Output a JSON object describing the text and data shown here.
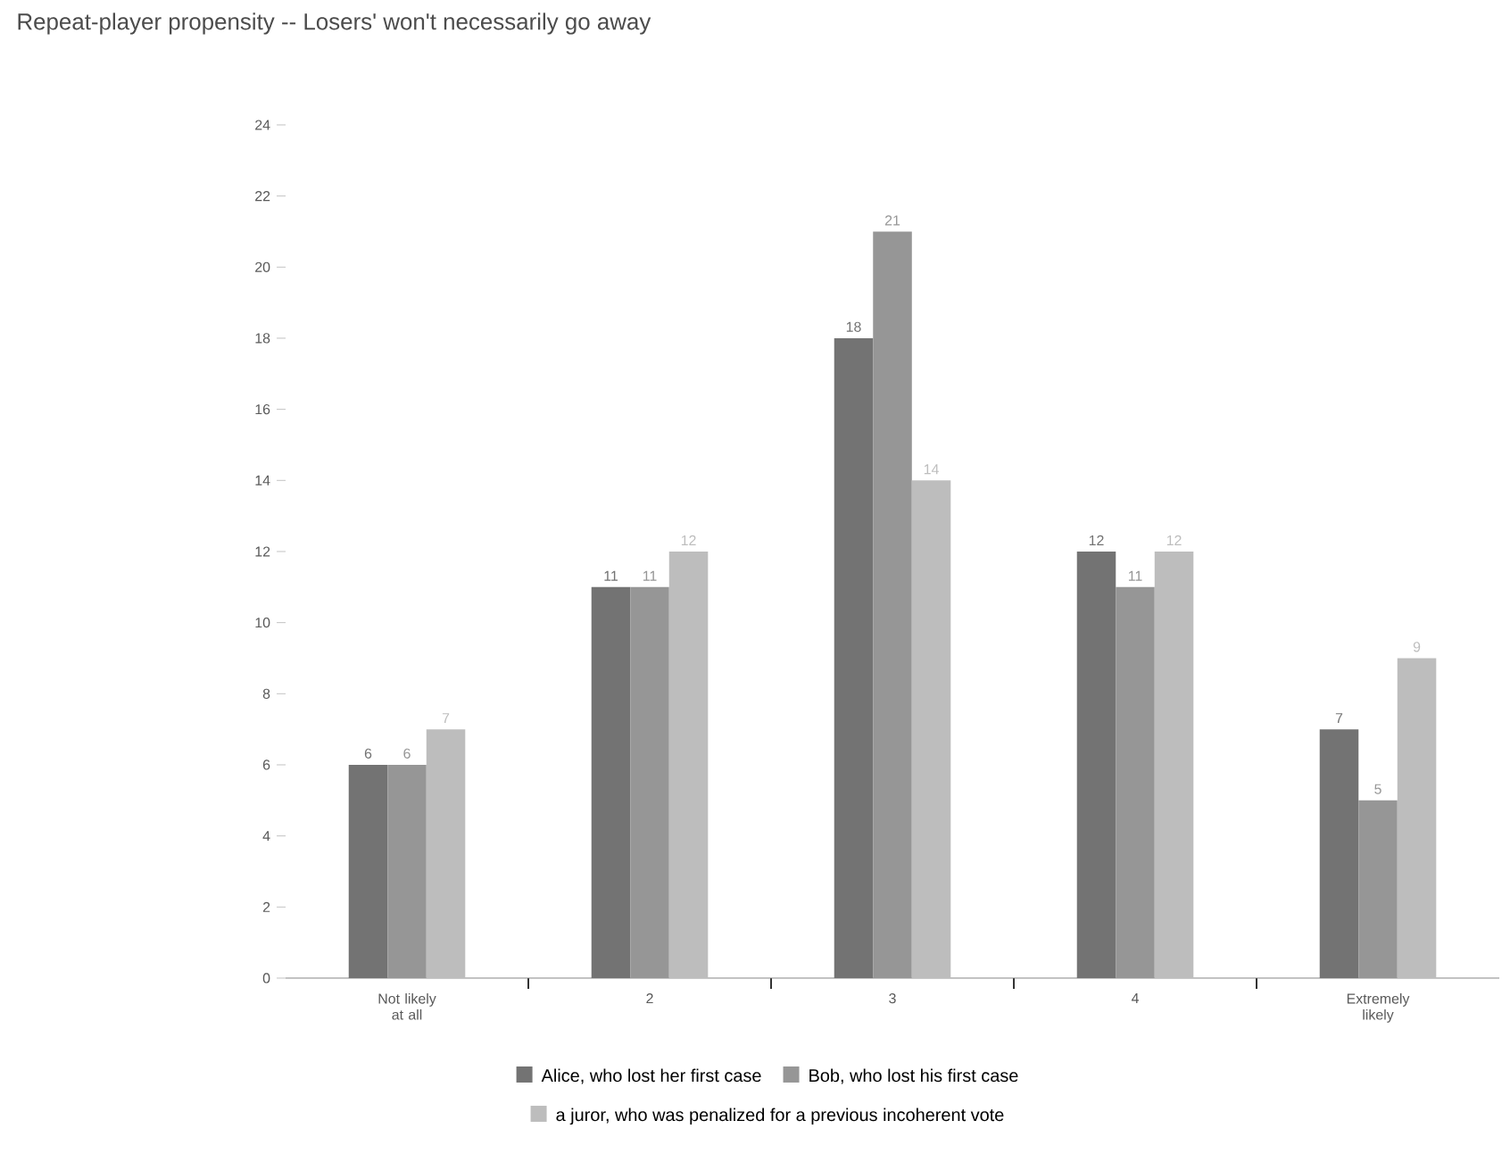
{
  "chart_data": {
    "type": "bar",
    "title": "Repeat-player propensity -- Losers' won't necessarily go away",
    "categories": [
      "Not likely at all",
      "2",
      "3",
      "4",
      "Extremely likely"
    ],
    "series": [
      {
        "name": "Alice, who lost her first case",
        "color": "#737373",
        "values": [
          6,
          11,
          18,
          12,
          7
        ]
      },
      {
        "name": "Bob, who lost his first case",
        "color": "#969696",
        "values": [
          6,
          11,
          21,
          11,
          5
        ]
      },
      {
        "name": "a juror, who was penalized for a previous incoherent vote",
        "color": "#bdbdbd",
        "values": [
          7,
          12,
          14,
          12,
          9
        ]
      }
    ],
    "ylim": [
      0,
      24
    ],
    "yticks": [
      0,
      2,
      4,
      6,
      8,
      10,
      12,
      14,
      16,
      18,
      20,
      22,
      24
    ],
    "data_labels": true,
    "legend": "bottom"
  }
}
